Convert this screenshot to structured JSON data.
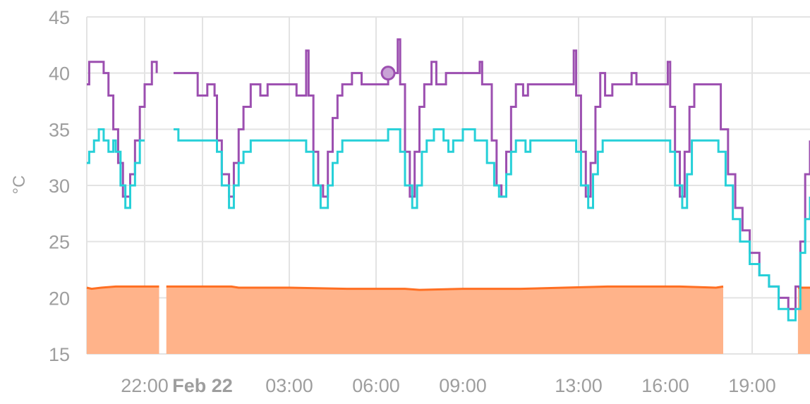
{
  "chart_data": {
    "type": "line",
    "title": "",
    "ylabel": "°C",
    "xlabel": "",
    "ylim": [
      15,
      45
    ],
    "xlim": [
      "2024-02-21T20:00",
      "2024-02-22T21:00"
    ],
    "yticks": [
      15,
      20,
      25,
      30,
      35,
      40,
      45
    ],
    "xticks": [
      {
        "t": "2024-02-21T22:00",
        "label": "22:00",
        "bold": false
      },
      {
        "t": "2024-02-22T00:00",
        "label": "Feb 22",
        "bold": true
      },
      {
        "t": "2024-02-22T03:00",
        "label": "03:00",
        "bold": false
      },
      {
        "t": "2024-02-22T06:00",
        "label": "06:00",
        "bold": false
      },
      {
        "t": "2024-02-22T09:00",
        "label": "09:00",
        "bold": false
      },
      {
        "t": "2024-02-22T13:00",
        "label": "13:00",
        "bold": false
      },
      {
        "t": "2024-02-22T16:00",
        "label": "16:00",
        "bold": false
      },
      {
        "t": "2024-02-22T19:00",
        "label": "19:00",
        "bold": false
      }
    ],
    "grid": true,
    "colors": {
      "purple": "#9c4fb0",
      "cyan": "#26d0d8",
      "orange": "#ff6f22",
      "orange_fill": "#ffb38a",
      "grid": "#e3e3e3",
      "text": "#9e9e9e"
    },
    "series": [
      {
        "style": "step",
        "color": "#9c4fb0",
        "points": [
          [
            "2024-02-21T20:00",
            39
          ],
          [
            "2024-02-21T20:05",
            41
          ],
          [
            "2024-02-21T20:35",
            40
          ],
          [
            "2024-02-21T20:45",
            38
          ],
          [
            "2024-02-21T20:55",
            35
          ],
          [
            "2024-02-21T21:05",
            32
          ],
          [
            "2024-02-21T21:15",
            29
          ],
          [
            "2024-02-21T21:30",
            31
          ],
          [
            "2024-02-21T21:40",
            34
          ],
          [
            "2024-02-21T21:50",
            37
          ],
          [
            "2024-02-21T22:00",
            39
          ],
          [
            "2024-02-21T22:15",
            41
          ],
          [
            "2024-02-21T22:25",
            40
          ],
          [
            "2024-02-21T22:35",
            null
          ],
          [
            "2024-02-21T23:00",
            40
          ],
          [
            "2024-02-21T23:50",
            38
          ],
          [
            "2024-02-22T00:10",
            39
          ],
          [
            "2024-02-22T00:25",
            38
          ],
          [
            "2024-02-22T00:30",
            34
          ],
          [
            "2024-02-22T00:40",
            31
          ],
          [
            "2024-02-22T00:55",
            29
          ],
          [
            "2024-02-22T01:05",
            32
          ],
          [
            "2024-02-22T01:15",
            35
          ],
          [
            "2024-02-22T01:25",
            37
          ],
          [
            "2024-02-22T01:40",
            39
          ],
          [
            "2024-02-22T02:00",
            38
          ],
          [
            "2024-02-22T02:15",
            39
          ],
          [
            "2024-02-22T03:15",
            38
          ],
          [
            "2024-02-22T03:35",
            42
          ],
          [
            "2024-02-22T03:40",
            38
          ],
          [
            "2024-02-22T03:50",
            33
          ],
          [
            "2024-02-22T04:00",
            30
          ],
          [
            "2024-02-22T04:10",
            29
          ],
          [
            "2024-02-22T04:20",
            33
          ],
          [
            "2024-02-22T04:30",
            36
          ],
          [
            "2024-02-22T04:40",
            38
          ],
          [
            "2024-02-22T04:50",
            39
          ],
          [
            "2024-02-22T05:10",
            40
          ],
          [
            "2024-02-22T05:30",
            39
          ],
          [
            "2024-02-22T06:25",
            40
          ],
          [
            "2024-02-22T06:45",
            43
          ],
          [
            "2024-02-22T06:50",
            39
          ],
          [
            "2024-02-22T07:00",
            33
          ],
          [
            "2024-02-22T07:10",
            29
          ],
          [
            "2024-02-22T07:20",
            33
          ],
          [
            "2024-02-22T07:30",
            37
          ],
          [
            "2024-02-22T07:40",
            39
          ],
          [
            "2024-02-22T07:55",
            41
          ],
          [
            "2024-02-22T08:05",
            39
          ],
          [
            "2024-02-22T08:25",
            40
          ],
          [
            "2024-02-22T09:35",
            41
          ],
          [
            "2024-02-22T09:40",
            39
          ],
          [
            "2024-02-22T10:00",
            34
          ],
          [
            "2024-02-22T10:10",
            30
          ],
          [
            "2024-02-22T10:20",
            29
          ],
          [
            "2024-02-22T10:30",
            33
          ],
          [
            "2024-02-22T10:40",
            37
          ],
          [
            "2024-02-22T10:50",
            39
          ],
          [
            "2024-02-22T11:05",
            38
          ],
          [
            "2024-02-22T11:15",
            39
          ],
          [
            "2024-02-22T12:50",
            42
          ],
          [
            "2024-02-22T12:55",
            38
          ],
          [
            "2024-02-22T13:05",
            33
          ],
          [
            "2024-02-22T13:15",
            29
          ],
          [
            "2024-02-22T13:25",
            32
          ],
          [
            "2024-02-22T13:35",
            37
          ],
          [
            "2024-02-22T13:45",
            40
          ],
          [
            "2024-02-22T13:55",
            38
          ],
          [
            "2024-02-22T14:10",
            39
          ],
          [
            "2024-02-22T14:50",
            40
          ],
          [
            "2024-02-22T15:00",
            39
          ],
          [
            "2024-02-22T16:05",
            41
          ],
          [
            "2024-02-22T16:10",
            37
          ],
          [
            "2024-02-22T16:20",
            33
          ],
          [
            "2024-02-22T16:30",
            29
          ],
          [
            "2024-02-22T16:40",
            33
          ],
          [
            "2024-02-22T16:50",
            37
          ],
          [
            "2024-02-22T17:00",
            39
          ],
          [
            "2024-02-22T17:25",
            39
          ],
          [
            "2024-02-22T17:55",
            35
          ],
          [
            "2024-02-22T18:10",
            31
          ],
          [
            "2024-02-22T18:25",
            28
          ],
          [
            "2024-02-22T18:40",
            26
          ],
          [
            "2024-02-22T18:55",
            24
          ],
          [
            "2024-02-22T19:15",
            22
          ],
          [
            "2024-02-22T19:35",
            21
          ],
          [
            "2024-02-22T19:55",
            20
          ],
          [
            "2024-02-22T20:15",
            19
          ],
          [
            "2024-02-22T20:30",
            21
          ],
          [
            "2024-02-22T20:40",
            25
          ],
          [
            "2024-02-22T20:50",
            31
          ],
          [
            "2024-02-22T21:00",
            34
          ]
        ]
      },
      {
        "style": "step",
        "color": "#26d0d8",
        "points": [
          [
            "2024-02-21T20:00",
            32
          ],
          [
            "2024-02-21T20:05",
            33
          ],
          [
            "2024-02-21T20:15",
            34
          ],
          [
            "2024-02-21T20:25",
            35
          ],
          [
            "2024-02-21T20:35",
            34
          ],
          [
            "2024-02-21T20:45",
            33
          ],
          [
            "2024-02-21T20:55",
            34
          ],
          [
            "2024-02-21T21:00",
            33
          ],
          [
            "2024-02-21T21:10",
            30
          ],
          [
            "2024-02-21T21:20",
            28
          ],
          [
            "2024-02-21T21:30",
            30
          ],
          [
            "2024-02-21T21:40",
            32
          ],
          [
            "2024-02-21T21:50",
            34
          ],
          [
            "2024-02-21T22:00",
            34
          ],
          [
            "2024-02-21T22:35",
            null
          ],
          [
            "2024-02-21T23:00",
            35
          ],
          [
            "2024-02-21T23:10",
            34
          ],
          [
            "2024-02-22T00:30",
            33
          ],
          [
            "2024-02-22T00:40",
            30
          ],
          [
            "2024-02-22T00:55",
            28
          ],
          [
            "2024-02-22T01:05",
            30
          ],
          [
            "2024-02-22T01:15",
            32
          ],
          [
            "2024-02-22T01:25",
            33
          ],
          [
            "2024-02-22T01:40",
            34
          ],
          [
            "2024-02-22T03:35",
            33
          ],
          [
            "2024-02-22T03:50",
            30
          ],
          [
            "2024-02-22T04:05",
            28
          ],
          [
            "2024-02-22T04:20",
            30
          ],
          [
            "2024-02-22T04:30",
            32
          ],
          [
            "2024-02-22T04:40",
            33
          ],
          [
            "2024-02-22T04:50",
            34
          ],
          [
            "2024-02-22T06:25",
            35
          ],
          [
            "2024-02-22T06:50",
            33
          ],
          [
            "2024-02-22T07:00",
            30
          ],
          [
            "2024-02-22T07:15",
            28
          ],
          [
            "2024-02-22T07:25",
            30
          ],
          [
            "2024-02-22T07:35",
            33
          ],
          [
            "2024-02-22T07:45",
            34
          ],
          [
            "2024-02-22T08:00",
            35
          ],
          [
            "2024-02-22T08:20",
            34
          ],
          [
            "2024-02-22T08:30",
            33
          ],
          [
            "2024-02-22T08:40",
            34
          ],
          [
            "2024-02-22T09:00",
            35
          ],
          [
            "2024-02-22T09:25",
            34
          ],
          [
            "2024-02-22T09:50",
            32
          ],
          [
            "2024-02-22T10:05",
            30
          ],
          [
            "2024-02-22T10:15",
            29
          ],
          [
            "2024-02-22T10:30",
            31
          ],
          [
            "2024-02-22T10:40",
            33
          ],
          [
            "2024-02-22T10:50",
            34
          ],
          [
            "2024-02-22T11:10",
            33
          ],
          [
            "2024-02-22T11:20",
            34
          ],
          [
            "2024-02-22T12:55",
            33
          ],
          [
            "2024-02-22T13:05",
            30
          ],
          [
            "2024-02-22T13:20",
            28
          ],
          [
            "2024-02-22T13:30",
            31
          ],
          [
            "2024-02-22T13:40",
            33
          ],
          [
            "2024-02-22T13:50",
            34
          ],
          [
            "2024-02-22T16:10",
            33
          ],
          [
            "2024-02-22T16:20",
            30
          ],
          [
            "2024-02-22T16:35",
            28
          ],
          [
            "2024-02-22T16:45",
            31
          ],
          [
            "2024-02-22T16:55",
            34
          ],
          [
            "2024-02-22T17:20",
            34
          ],
          [
            "2024-02-22T17:50",
            33
          ],
          [
            "2024-02-22T18:05",
            30
          ],
          [
            "2024-02-22T18:20",
            27
          ],
          [
            "2024-02-22T18:35",
            25
          ],
          [
            "2024-02-22T18:55",
            23
          ],
          [
            "2024-02-22T19:15",
            22
          ],
          [
            "2024-02-22T19:35",
            21
          ],
          [
            "2024-02-22T19:55",
            19
          ],
          [
            "2024-02-22T20:15",
            18
          ],
          [
            "2024-02-22T20:30",
            19
          ],
          [
            "2024-02-22T20:40",
            24
          ],
          [
            "2024-02-22T20:50",
            27
          ],
          [
            "2024-02-22T21:00",
            29
          ]
        ]
      },
      {
        "style": "area",
        "color": "#ff6f22",
        "fill": "#ffb38a",
        "baseline": 15,
        "segments": [
          [
            [
              "2024-02-21T20:00",
              20.9
            ],
            [
              "2024-02-21T20:10",
              20.8
            ],
            [
              "2024-02-21T20:30",
              20.9
            ],
            [
              "2024-02-21T21:00",
              21.0
            ],
            [
              "2024-02-21T22:30",
              21.0
            ]
          ],
          [
            [
              "2024-02-21T22:45",
              21.0
            ],
            [
              "2024-02-22T01:00",
              21.0
            ],
            [
              "2024-02-22T01:15",
              20.9
            ],
            [
              "2024-02-22T03:00",
              20.9
            ],
            [
              "2024-02-22T05:00",
              20.8
            ],
            [
              "2024-02-22T07:00",
              20.8
            ],
            [
              "2024-02-22T07:30",
              20.7
            ],
            [
              "2024-02-22T09:00",
              20.8
            ],
            [
              "2024-02-22T11:00",
              20.8
            ],
            [
              "2024-02-22T12:30",
              20.9
            ],
            [
              "2024-02-22T14:00",
              21.0
            ],
            [
              "2024-02-22T16:30",
              21.0
            ],
            [
              "2024-02-22T17:45",
              20.9
            ],
            [
              "2024-02-22T18:00",
              21.0
            ]
          ],
          [
            [
              "2024-02-22T20:35",
              20.9
            ],
            [
              "2024-02-22T21:00",
              20.9
            ]
          ]
        ]
      }
    ],
    "marker": {
      "t": "2024-02-22T06:25",
      "y": 40,
      "color": "#9c4fb0"
    }
  }
}
